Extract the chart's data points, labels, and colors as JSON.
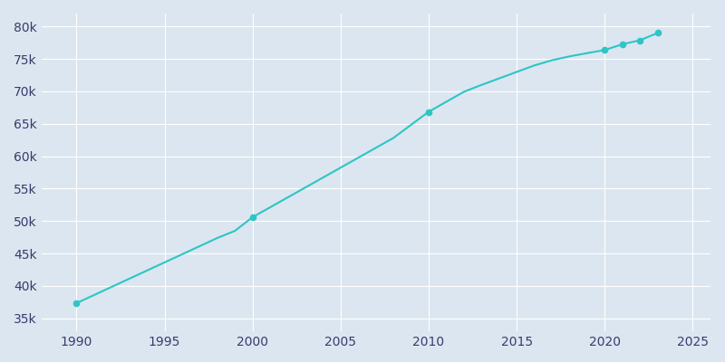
{
  "years": [
    1990,
    1991,
    1992,
    1993,
    1994,
    1995,
    1996,
    1997,
    1998,
    1999,
    2000,
    2001,
    2002,
    2003,
    2004,
    2005,
    2006,
    2007,
    2008,
    2009,
    2010,
    2011,
    2012,
    2013,
    2014,
    2015,
    2016,
    2017,
    2018,
    2019,
    2020,
    2021,
    2022,
    2023
  ],
  "population": [
    37352,
    38608,
    39864,
    41120,
    42376,
    43632,
    44888,
    46144,
    47400,
    48504,
    50608,
    52135,
    53662,
    55189,
    56716,
    58243,
    59770,
    61297,
    62824,
    64842,
    66859,
    68397,
    69935,
    71000,
    72000,
    73000,
    74000,
    74800,
    75400,
    75900,
    76378,
    77269,
    77882,
    79002
  ],
  "marker_years": [
    1990,
    2000,
    2010,
    2020,
    2021,
    2022,
    2023
  ],
  "marker_populations": [
    37352,
    50608,
    66859,
    76378,
    77269,
    77882,
    79002
  ],
  "line_color": "#2DC5C5",
  "marker_color": "#2DC5C5",
  "background_color": "#dce6f0",
  "plot_bg_color": "#dce6f0",
  "grid_color": "#ffffff",
  "tick_label_color": "#3a3a6e",
  "xlim": [
    1988,
    2026
  ],
  "ylim": [
    33000,
    82000
  ],
  "xticks": [
    1990,
    1995,
    2000,
    2005,
    2010,
    2015,
    2020,
    2025
  ],
  "yticks": [
    35000,
    40000,
    45000,
    50000,
    55000,
    60000,
    65000,
    70000,
    75000,
    80000
  ],
  "ytick_labels": [
    "35k",
    "40k",
    "45k",
    "50k",
    "55k",
    "60k",
    "65k",
    "70k",
    "75k",
    "80k"
  ],
  "xtick_labels": [
    "1990",
    "1995",
    "2000",
    "2005",
    "2010",
    "2015",
    "2020",
    "2025"
  ],
  "figsize": [
    8.0,
    4.0
  ],
  "dpi": 100,
  "linewidth": 1.5,
  "markersize": 4.5,
  "tick_fontsize": 10
}
